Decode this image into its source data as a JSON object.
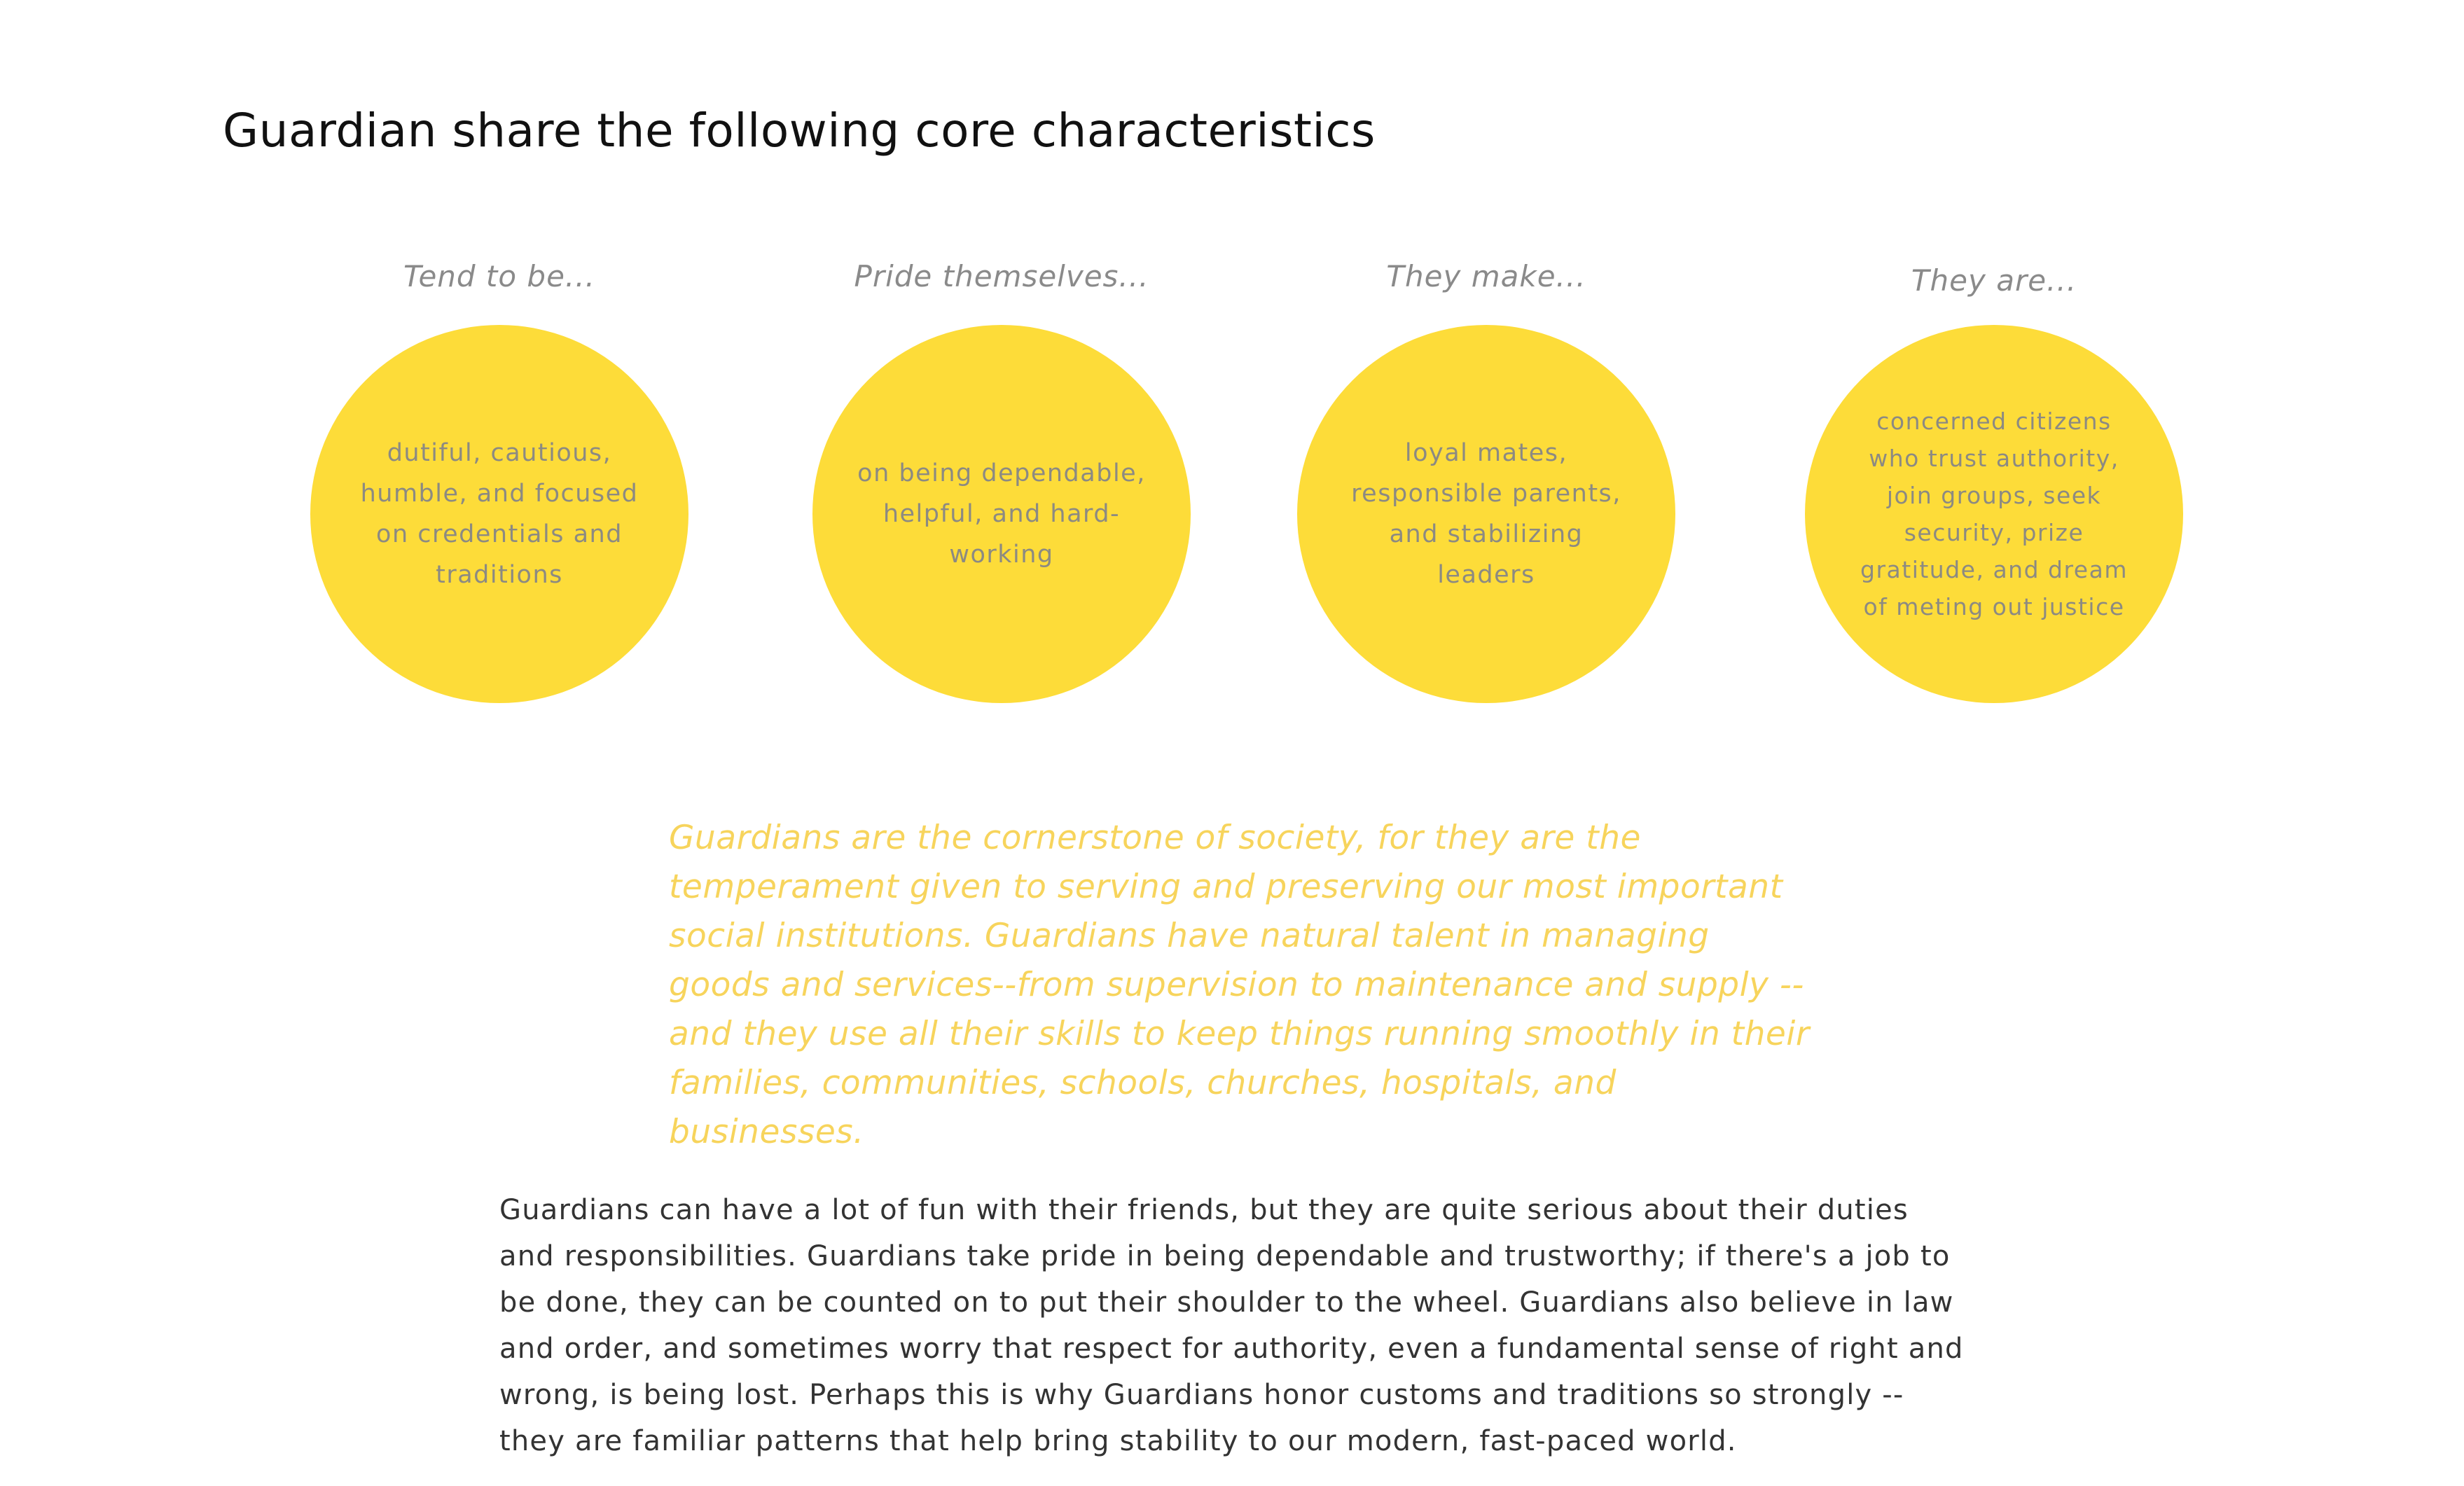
{
  "heading": "Guardian share the following core characteristics",
  "traits": [
    {
      "label": "Tend to be...",
      "text": "dutiful, cautious, humble, and focused on credentials and traditions"
    },
    {
      "label": "Pride themselves...",
      "text": "on being dependable, helpful, and hard-working"
    },
    {
      "label": "They make...",
      "text": "loyal mates, responsible parents, and stabilizing leaders"
    },
    {
      "label": "They are...",
      "text": "concerned citizens who trust authority, join groups, seek security, prize gratitude, and dream of meting out justice"
    }
  ],
  "quote": "Guardians are the cornerstone of society, for they are the temperament given to serving and preserving our most important social institutions. Guardians have natural talent in managing goods and services--from supervision to maintenance and supply -- and they use all their skills to keep things running smoothly in their families, communities, schools, churches, hospitals, and businesses.",
  "body": "Guardians can have a lot of fun with their friends, but they are quite serious about their duties and responsibilities. Guardians take pride in being dependable and trustworthy; if there's a job to be done, they can be counted on to put their shoulder to the wheel. Guardians also believe in law and order, and sometimes worry that respect for authority, even a fundamental sense of right and wrong, is being lost. Perhaps this is why Guardians honor customs and traditions so strongly -- they are familiar patterns that help bring stability to our modern, fast-paced world.",
  "colors": {
    "circle": "#fddc39",
    "quote": "#f7d45c",
    "label": "#8a8a8a",
    "circle_text": "#8c8a82",
    "body_text": "#333333"
  }
}
